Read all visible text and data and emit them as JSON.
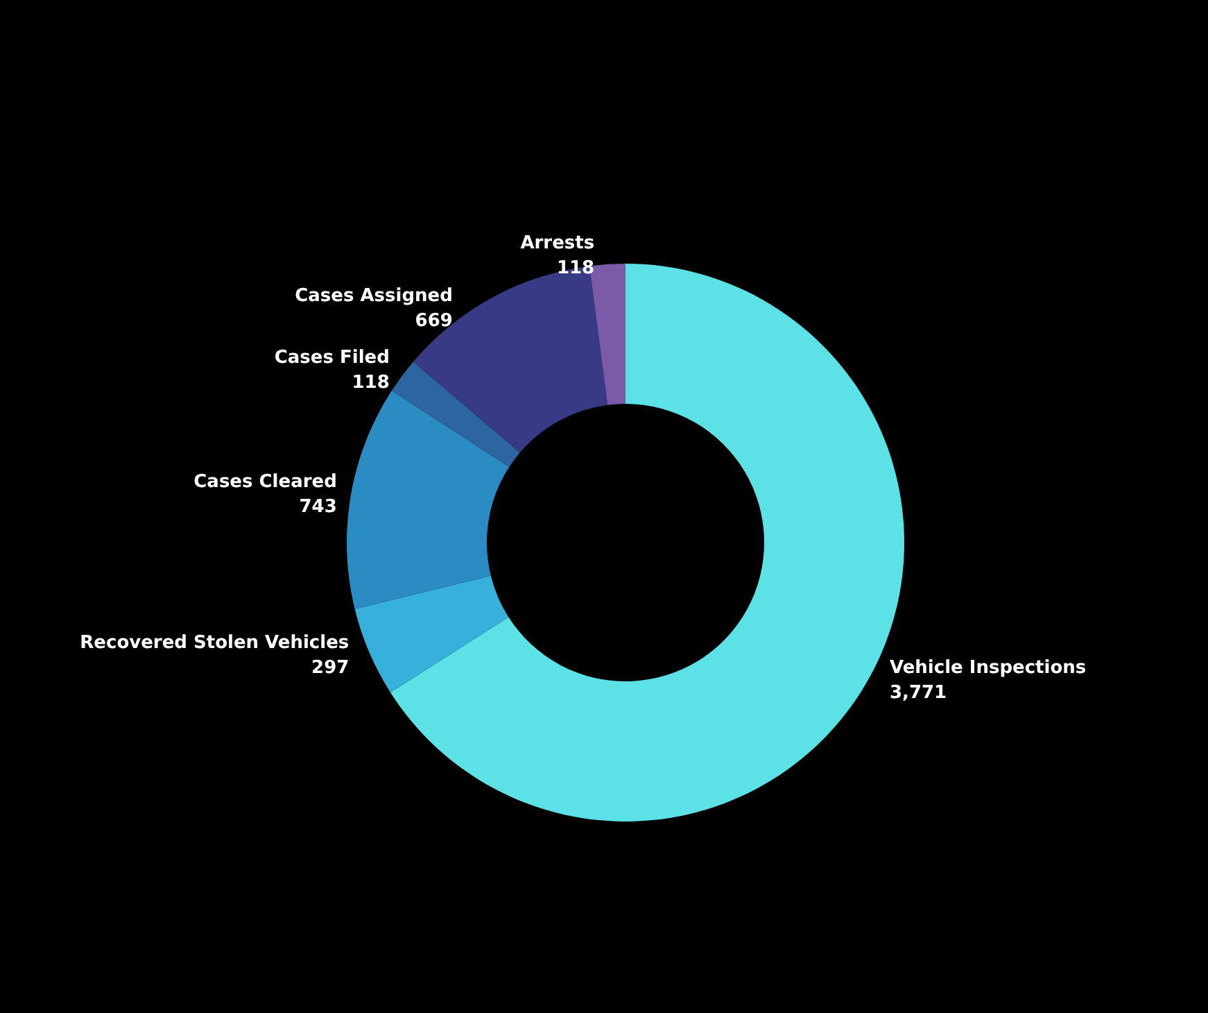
{
  "chart_data": {
    "type": "donut",
    "categories": [
      "Vehicle Inspections",
      "Recovered Stolen Vehicles",
      "Cases Cleared",
      "Cases Filed",
      "Cases Assigned",
      "Arrests"
    ],
    "values": [
      3771,
      297,
      743,
      118,
      669,
      118
    ],
    "colors": [
      "#5ce1e6",
      "#38b0dc",
      "#2b8cc4",
      "#2d65a3",
      "#383a85",
      "#7b5ba8"
    ],
    "value_labels": [
      "3,771",
      "297",
      "743",
      "118",
      "669",
      "118"
    ],
    "legend": false
  }
}
